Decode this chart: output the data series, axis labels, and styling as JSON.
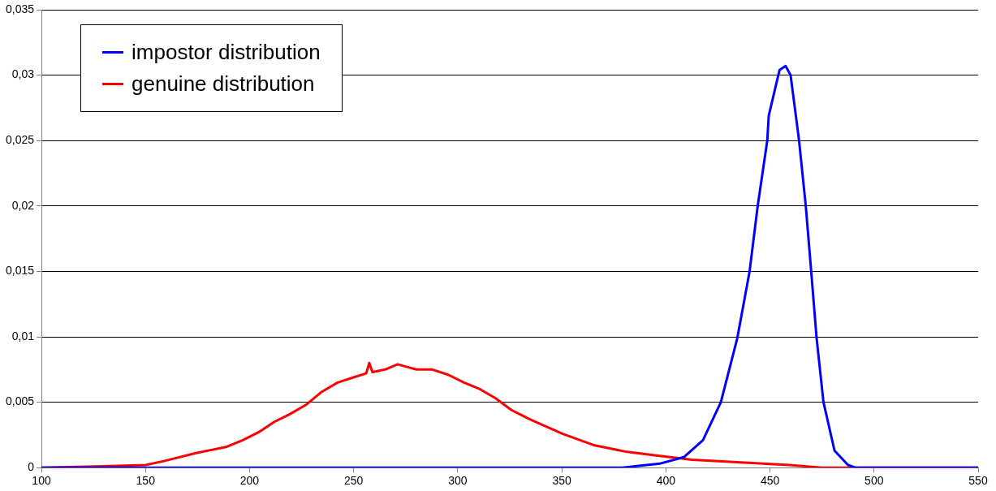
{
  "chart_data": {
    "type": "line",
    "xlim": [
      100,
      550
    ],
    "xticks": [
      100,
      150,
      200,
      250,
      300,
      350,
      400,
      450,
      500,
      550
    ],
    "ylim": [
      0,
      0.035
    ],
    "yticks": [
      0,
      {
        "value": 0.005,
        "label": "0,005"
      },
      {
        "value": 0.01,
        "label": "0,01"
      },
      {
        "value": 0.015,
        "label": "0,015"
      },
      {
        "value": 0.02,
        "label": "0,02"
      },
      {
        "value": 0.025,
        "label": "0,025"
      },
      {
        "value": 0.03,
        "label": "0,03"
      },
      {
        "value": 0.035,
        "label": "0,035"
      }
    ],
    "grid": "y",
    "legend": "top left",
    "marker": "none",
    "line_style": "solid",
    "series": [
      {
        "name": "impostor distribution",
        "color": "#0000ff",
        "x": [
          100,
          200,
          300,
          379,
          397,
          408.6,
          417.8,
          426.4,
          434.3,
          440.2,
          444.1,
          448.7,
          449.4,
          454.6,
          457.5,
          459.9,
          463.9,
          467.2,
          469.8,
          472.4,
          475.7,
          481,
          487.5,
          491,
          550
        ],
        "values": [
          0,
          0,
          0,
          0,
          0.0003,
          0.0008,
          0.0021,
          0.005,
          0.0099,
          0.015,
          0.02,
          0.025,
          0.0269,
          0.0304,
          0.0307,
          0.03,
          0.0251,
          0.02,
          0.015,
          0.0099,
          0.005,
          0.0013,
          0.0002,
          0,
          0
        ]
      },
      {
        "name": "genuine distribution",
        "color": "#ff0000",
        "x": [
          100,
          130,
          150,
          158.8,
          173.9,
          189.1,
          196.7,
          204.3,
          211.9,
          219.5,
          227.1,
          234.7,
          242.3,
          249.9,
          256,
          257.5,
          259,
          265.1,
          271.1,
          280.2,
          287.8,
          295.4,
          303,
          310.6,
          318.2,
          325.8,
          334.6,
          350.2,
          365.8,
          381.4,
          397,
          412.6,
          436,
          459.4,
          475,
          550
        ],
        "values": [
          0,
          0.0001,
          0.0002,
          0.0005,
          0.0011,
          0.0016,
          0.0021,
          0.0027,
          0.0035,
          0.0041,
          0.0048,
          0.0058,
          0.0065,
          0.0069,
          0.0072,
          0.008,
          0.0073,
          0.0075,
          0.0079,
          0.0075,
          0.0075,
          0.0071,
          0.0065,
          0.006,
          0.0053,
          0.0044,
          0.0037,
          0.0026,
          0.0017,
          0.0012,
          0.0009,
          0.0006,
          0.0004,
          0.0002,
          0,
          0
        ]
      }
    ]
  }
}
